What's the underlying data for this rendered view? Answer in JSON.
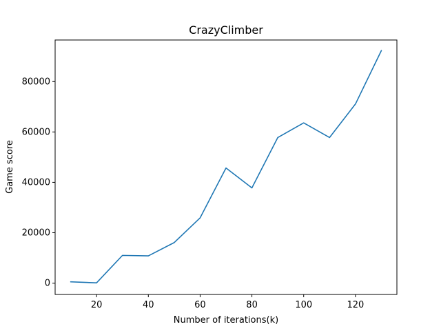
{
  "chart_data": {
    "type": "line",
    "title": "CrazyClimber",
    "xlabel": "Number of iterations(k)",
    "ylabel": "Game score",
    "xlim": [
      4,
      136
    ],
    "ylim": [
      -4500,
      96500
    ],
    "xticks": [
      20,
      40,
      60,
      80,
      100,
      120
    ],
    "yticks": [
      0,
      20000,
      40000,
      60000,
      80000
    ],
    "grid": false,
    "series": [
      {
        "color": "#1f77b4",
        "x": [
          10,
          20,
          30,
          40,
          50,
          60,
          70,
          80,
          90,
          100,
          110,
          120,
          130
        ],
        "y": [
          500,
          100,
          11000,
          10800,
          16100,
          25900,
          45700,
          37800,
          57800,
          63600,
          57800,
          71100,
          92300
        ]
      }
    ]
  }
}
